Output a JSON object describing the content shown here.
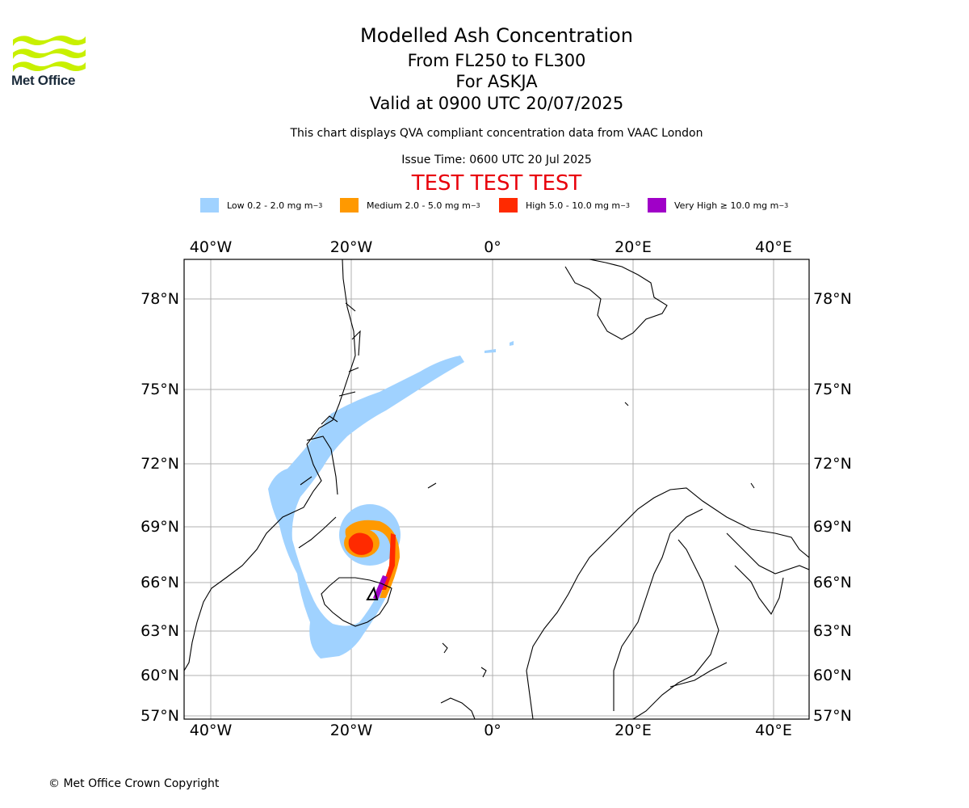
{
  "header": {
    "title": "Modelled Ash Concentration",
    "levels": "From FL250 to FL300",
    "volcano": "For ASKJA",
    "valid": "Valid at 0900 UTC 20/07/2025",
    "compliance": "This chart displays QVA compliant concentration data from VAAC London",
    "issue_time": "Issue Time: 0600 UTC 20 Jul 2025",
    "test_banner": "TEST TEST TEST"
  },
  "logo": {
    "text": "Met Office",
    "color": "#c8f000"
  },
  "legend": [
    {
      "label": "Low 0.2 - 2.0 mg m",
      "sup": "−3",
      "color": "#a0d2ff"
    },
    {
      "label": "Medium 2.0 - 5.0 mg m",
      "sup": "−3",
      "color": "#ff9900"
    },
    {
      "label": "High 5.0 - 10.0 mg m",
      "sup": "−3",
      "color": "#ff2a00"
    },
    {
      "label": "Very High  ≥  10.0 mg m",
      "sup": "−3",
      "color": "#a000c8"
    }
  ],
  "map": {
    "lon_labels": [
      "40°W",
      "20°W",
      "0°",
      "20°E",
      "40°E"
    ],
    "lat_labels": [
      "78°N",
      "75°N",
      "72°N",
      "69°N",
      "66°N",
      "63°N",
      "60°N",
      "57°N"
    ],
    "lon_range": [
      -44,
      45
    ],
    "lat_range": [
      57,
      79
    ],
    "volcano_marker": "triangle-marker",
    "grid": true
  },
  "footer": {
    "copyright": "© Met Office Crown Copyright"
  }
}
